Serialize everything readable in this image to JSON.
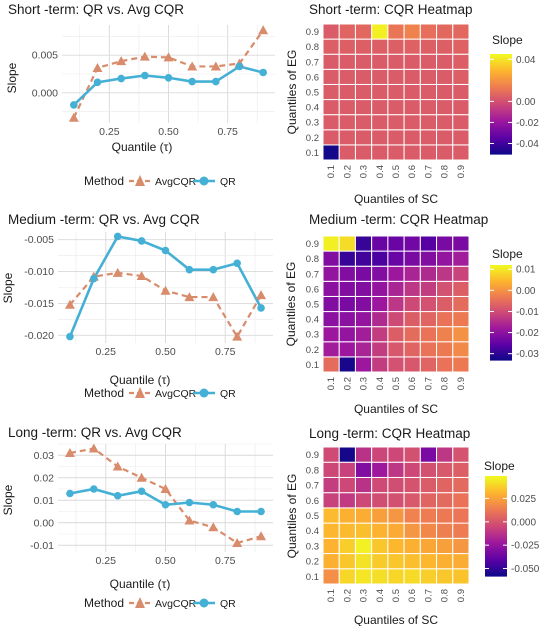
{
  "figure": {
    "x_tick_labels": [
      "0.25",
      "0.50",
      "0.75"
    ],
    "legend_title": "Method",
    "legend_labels": [
      "AvgCQR",
      "QR"
    ],
    "heatmap_tick_labels": [
      "0.1",
      "0.2",
      "0.3",
      "0.4",
      "0.5",
      "0.6",
      "0.7",
      "0.8",
      "0.9"
    ],
    "colors": {
      "avgcqr": "#D98C6C",
      "qr": "#45B0D5",
      "panel_bg": "#F2F2F2",
      "plasma": [
        "#0D0887",
        "#5C01A6",
        "#9C179E",
        "#CC4778",
        "#ED7953",
        "#FDB42F",
        "#F0F921"
      ]
    }
  },
  "chart_data": [
    {
      "type": "line",
      "title": "Short -term: QR vs. Avg CQR",
      "xlabel": "Quantile (τ)",
      "ylabel": "Slope",
      "xlim": [
        0.05,
        0.95
      ],
      "ylim": [
        -0.004,
        0.009
      ],
      "y_ticks": [
        0.0,
        0.005
      ],
      "y_tick_labels": [
        "0.000",
        "0.005"
      ],
      "x": [
        0.1,
        0.2,
        0.3,
        0.4,
        0.5,
        0.6,
        0.7,
        0.8,
        0.9
      ],
      "series": [
        {
          "name": "AvgCQR",
          "values": [
            -0.0033,
            0.0033,
            0.0042,
            0.0048,
            0.0047,
            0.0035,
            0.0035,
            0.0039,
            0.0083
          ]
        },
        {
          "name": "QR",
          "values": [
            -0.0016,
            0.0014,
            0.0019,
            0.0023,
            0.002,
            0.0015,
            0.0015,
            0.0035,
            0.0027
          ]
        }
      ],
      "grid": true,
      "legend": "bottom"
    },
    {
      "type": "heatmap",
      "title": "Short -term: CQR Heatmap",
      "xlabel": "Quantiles of SC",
      "ylabel": "Quantiles of EG",
      "colorbar_title": "Slope",
      "zlim": [
        -0.05,
        0.045
      ],
      "colorbar_ticks": [
        0.04,
        0.0,
        -0.02,
        -0.04
      ],
      "colorbar_tick_labels": [
        "0.04",
        "0.00",
        "-0.02",
        "-0.04"
      ],
      "x_categories": [
        "0.1",
        "0.2",
        "0.3",
        "0.4",
        "0.5",
        "0.6",
        "0.7",
        "0.8",
        "0.9"
      ],
      "y_categories": [
        "0.1",
        "0.2",
        "0.3",
        "0.4",
        "0.5",
        "0.6",
        "0.7",
        "0.8",
        "0.9"
      ],
      "values_note": "rows ordered from EG 0.1 (bottom) to 0.9 (top); columns SC 0.1..0.9",
      "values": [
        [
          -0.049,
          0.004,
          0.004,
          0.004,
          0.004,
          0.004,
          0.004,
          0.004,
          0.004
        ],
        [
          0.004,
          0.004,
          0.004,
          0.004,
          0.004,
          0.004,
          0.004,
          0.004,
          0.004
        ],
        [
          0.004,
          0.004,
          0.004,
          0.004,
          0.004,
          0.004,
          0.004,
          0.004,
          0.004
        ],
        [
          0.004,
          0.004,
          0.004,
          0.004,
          0.004,
          0.004,
          0.004,
          0.004,
          0.004
        ],
        [
          0.004,
          0.004,
          0.004,
          0.004,
          0.004,
          0.004,
          0.004,
          0.004,
          0.004
        ],
        [
          0.004,
          0.004,
          0.004,
          0.004,
          0.004,
          0.004,
          0.004,
          0.004,
          0.005
        ],
        [
          0.004,
          0.004,
          0.004,
          0.004,
          0.004,
          0.004,
          0.004,
          0.004,
          0.005
        ],
        [
          0.005,
          0.005,
          0.005,
          0.005,
          0.005,
          0.006,
          0.005,
          0.005,
          0.006
        ],
        [
          0.004,
          0.007,
          0.008,
          0.043,
          0.012,
          0.016,
          0.01,
          0.008,
          0.008
        ]
      ]
    },
    {
      "type": "line",
      "title": "Medium -term: QR vs. Avg CQR",
      "xlabel": "Quantile (τ)",
      "ylabel": "Slope",
      "xlim": [
        0.05,
        0.95
      ],
      "ylim": [
        -0.0212,
        -0.0038
      ],
      "y_ticks": [
        -0.02,
        -0.015,
        -0.01,
        -0.005
      ],
      "y_tick_labels": [
        "-0.020",
        "-0.015",
        "-0.010",
        "-0.005"
      ],
      "x": [
        0.1,
        0.2,
        0.3,
        0.4,
        0.5,
        0.6,
        0.7,
        0.8,
        0.9
      ],
      "series": [
        {
          "name": "AvgCQR",
          "values": [
            -0.0152,
            -0.0108,
            -0.0102,
            -0.0107,
            -0.013,
            -0.014,
            -0.014,
            -0.0202,
            -0.0137
          ]
        },
        {
          "name": "QR",
          "values": [
            -0.0202,
            -0.0111,
            -0.0045,
            -0.0052,
            -0.0067,
            -0.0097,
            -0.0097,
            -0.0087,
            -0.0157
          ]
        }
      ],
      "grid": true,
      "legend": "bottom"
    },
    {
      "type": "heatmap",
      "title": "Medium -term: CQR Heatmap",
      "xlabel": "Quantiles of SC",
      "ylabel": "Quantiles of EG",
      "colorbar_title": "Slope",
      "zlim": [
        -0.033,
        0.012
      ],
      "colorbar_ticks": [
        0.01,
        0.0,
        -0.01,
        -0.02,
        -0.03
      ],
      "colorbar_tick_labels": [
        "0.01",
        "0.00",
        "-0.01",
        "-0.02",
        "-0.03"
      ],
      "x_categories": [
        "0.1",
        "0.2",
        "0.3",
        "0.4",
        "0.5",
        "0.6",
        "0.7",
        "0.8",
        "0.9"
      ],
      "y_categories": [
        "0.1",
        "0.2",
        "0.3",
        "0.4",
        "0.5",
        "0.6",
        "0.7",
        "0.8",
        "0.9"
      ],
      "values_note": "rows ordered from EG 0.1 (bottom) to 0.9 (top); columns SC 0.1..0.9",
      "values": [
        [
          -0.005,
          -0.032,
          -0.018,
          -0.012,
          -0.009,
          -0.008,
          -0.006,
          -0.004,
          -0.003
        ],
        [
          -0.017,
          -0.018,
          -0.016,
          -0.012,
          -0.008,
          -0.006,
          -0.004,
          -0.003,
          -0.001
        ],
        [
          -0.018,
          -0.019,
          -0.017,
          -0.012,
          -0.007,
          -0.005,
          -0.004,
          -0.002,
          0.0
        ],
        [
          -0.02,
          -0.02,
          -0.019,
          -0.015,
          -0.01,
          -0.007,
          -0.006,
          -0.004,
          -0.003
        ],
        [
          -0.021,
          -0.022,
          -0.021,
          -0.018,
          -0.013,
          -0.01,
          -0.009,
          -0.007,
          -0.005
        ],
        [
          -0.02,
          -0.021,
          -0.021,
          -0.019,
          -0.016,
          -0.013,
          -0.012,
          -0.009,
          -0.007
        ],
        [
          -0.019,
          -0.021,
          -0.022,
          -0.021,
          -0.018,
          -0.016,
          -0.015,
          -0.013,
          -0.011
        ],
        [
          -0.021,
          -0.029,
          -0.028,
          -0.027,
          -0.024,
          -0.022,
          -0.021,
          -0.019,
          -0.017
        ],
        [
          0.011,
          0.009,
          -0.029,
          -0.024,
          -0.024,
          -0.023,
          -0.026,
          -0.022,
          -0.022
        ]
      ]
    },
    {
      "type": "line",
      "title": "Long -term: QR vs. Avg CQR",
      "xlabel": "Quantile (τ)",
      "ylabel": "Slope",
      "xlim": [
        0.05,
        0.95
      ],
      "ylim": [
        -0.013,
        0.035
      ],
      "y_ticks": [
        -0.01,
        0.0,
        0.01,
        0.02,
        0.03
      ],
      "y_tick_labels": [
        "-0.01",
        "0.00",
        "0.01",
        "0.02",
        "0.03"
      ],
      "x": [
        0.1,
        0.2,
        0.3,
        0.4,
        0.5,
        0.6,
        0.7,
        0.8,
        0.9
      ],
      "series": [
        {
          "name": "AvgCQR",
          "values": [
            0.031,
            0.033,
            0.025,
            0.02,
            0.015,
            0.001,
            -0.002,
            -0.009,
            -0.006
          ]
        },
        {
          "name": "QR",
          "values": [
            0.013,
            0.015,
            0.012,
            0.014,
            0.008,
            0.009,
            0.008,
            0.005,
            0.005
          ]
        }
      ],
      "grid": true,
      "legend": "bottom"
    },
    {
      "type": "heatmap",
      "title": "Long -term: CQR Heatmap",
      "xlabel": "Quantiles of SC",
      "ylabel": "Quantiles of EG",
      "colorbar_title": "Slope",
      "zlim": [
        -0.058,
        0.049
      ],
      "colorbar_ticks": [
        0.025,
        0.0,
        -0.025,
        -0.05
      ],
      "colorbar_tick_labels": [
        "0.025",
        "0.000",
        "-0.025",
        "-0.050"
      ],
      "x_categories": [
        "0.1",
        "0.2",
        "0.3",
        "0.4",
        "0.5",
        "0.6",
        "0.7",
        "0.8",
        "0.9"
      ],
      "y_categories": [
        "0.1",
        "0.2",
        "0.3",
        "0.4",
        "0.5",
        "0.6",
        "0.7",
        "0.8",
        "0.9"
      ],
      "values_note": "rows ordered from EG 0.1 (bottom) to 0.9 (top); columns SC 0.1..0.9",
      "values": [
        [
          0.02,
          0.04,
          0.044,
          0.042,
          0.04,
          0.041,
          0.038,
          0.036,
          0.035
        ],
        [
          0.03,
          0.036,
          0.043,
          0.037,
          0.036,
          0.034,
          0.032,
          0.03,
          0.029
        ],
        [
          0.031,
          0.038,
          0.047,
          0.036,
          0.032,
          0.03,
          0.027,
          0.025,
          0.022
        ],
        [
          0.032,
          0.033,
          0.034,
          0.031,
          0.028,
          0.022,
          0.018,
          0.015,
          0.014
        ],
        [
          0.033,
          0.03,
          0.029,
          0.025,
          0.022,
          0.016,
          0.014,
          0.013,
          0.012
        ],
        [
          -0.006,
          -0.009,
          -0.004,
          -0.002,
          -0.001,
          0.002,
          0.006,
          0.008,
          0.011
        ],
        [
          -0.008,
          -0.004,
          -0.012,
          -0.003,
          -0.002,
          0.0,
          0.003,
          0.006,
          0.008
        ],
        [
          -0.004,
          -0.006,
          -0.03,
          -0.022,
          -0.01,
          -0.004,
          -0.001,
          0.002,
          0.004
        ],
        [
          -0.003,
          -0.056,
          -0.012,
          -0.005,
          -0.004,
          -0.001,
          -0.032,
          -0.01,
          0.0
        ]
      ]
    }
  ]
}
